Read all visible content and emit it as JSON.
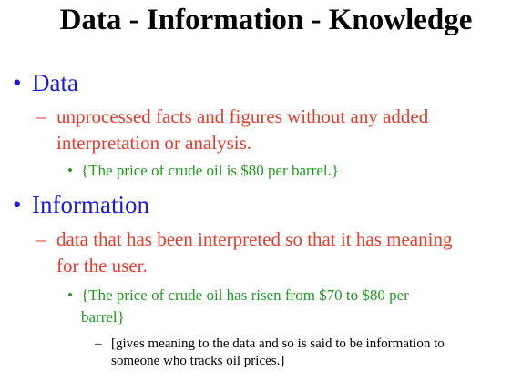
{
  "slide": {
    "title": "Data - Information - Knowledge",
    "bullets": {
      "level1": "•",
      "level2": "–",
      "level3": "•",
      "level4": "–"
    },
    "data_section": {
      "heading": "Data",
      "definition_lines": [
        "unprocessed facts and figures without any added",
        "interpretation or analysis."
      ],
      "example": "{The price of crude oil is $80 per barrel.}"
    },
    "information_section": {
      "heading": "Information",
      "definition_lines": [
        "data that has been interpreted so that it has meaning",
        "for the user."
      ],
      "example_lines": [
        "{The price of crude oil has risen from $70 to $80 per",
        "barrel}"
      ],
      "note_lines": [
        "[gives meaning to the data and so is said to be information to",
        "someone who tracks oil prices.]"
      ]
    }
  }
}
